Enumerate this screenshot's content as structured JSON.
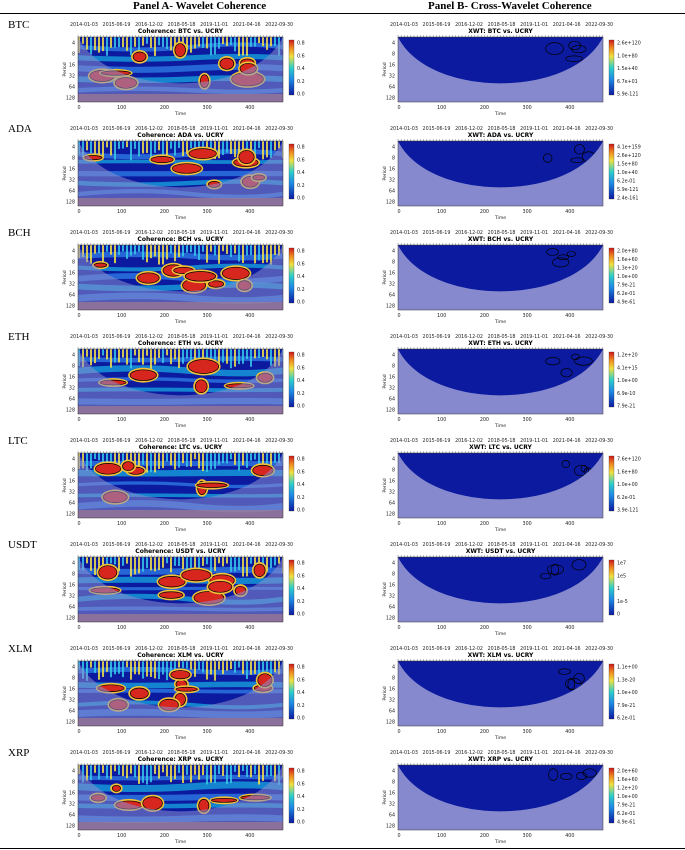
{
  "header": {
    "panel_a": "Panel A- Wavelet Coherence",
    "panel_b": "Panel B- Cross-Wavelet Coherence"
  },
  "common": {
    "date_ticks": [
      "2014-01-03",
      "2015-06-19",
      "2016-12-02",
      "2018-05-18",
      "2019-11-01",
      "2021-04-16",
      "2022-09-30"
    ],
    "time_ticks": [
      "0",
      "100",
      "200",
      "300",
      "400"
    ],
    "xlabel": "Time",
    "ylabel": "Period",
    "period_ticks": [
      "4",
      "8",
      "16",
      "32",
      "64",
      "128"
    ]
  },
  "colors": {
    "panel_bg": "#0b1a9e",
    "coi": "#8d8fd0",
    "hot": "#d7261e",
    "contour": "#000000"
  },
  "chart_data": [
    {
      "type": "heatmap",
      "panel": "A",
      "crypto": "BTC",
      "title": "Coherence: BTC vs. UCRY",
      "colorbar": [
        "0.8",
        "0.6",
        "0.4",
        "0.2",
        "0.0"
      ]
    },
    {
      "type": "heatmap",
      "panel": "B",
      "crypto": "BTC",
      "title": "XWT: BTC vs. UCRY",
      "colorbar": [
        "2.6e+120",
        "1.0e+80",
        "1.5e+40",
        "6.7e+01",
        "5.9e-121"
      ]
    },
    {
      "type": "heatmap",
      "panel": "A",
      "crypto": "ADA",
      "title": "Coherence: ADA vs. UCRY",
      "colorbar": [
        "0.8",
        "0.6",
        "0.4",
        "0.2",
        "0.0"
      ]
    },
    {
      "type": "heatmap",
      "panel": "B",
      "crypto": "ADA",
      "title": "XWT: ADA vs. UCRY",
      "colorbar": [
        "4.1e+159",
        "2.6e+120",
        "1.5e+80",
        "1.0e+40",
        "6.2e-01",
        "5.9e-121",
        "2.4e-161"
      ]
    },
    {
      "type": "heatmap",
      "panel": "A",
      "crypto": "BCH",
      "title": "Coherence: BCH vs. UCRY",
      "colorbar": [
        "0.8",
        "0.6",
        "0.4",
        "0.2",
        "0.0"
      ]
    },
    {
      "type": "heatmap",
      "panel": "B",
      "crypto": "BCH",
      "title": "XWT: BCH vs. UCRY",
      "colorbar": [
        "2.0e+80",
        "1.6e+60",
        "1.3e+20",
        "1.0e+00",
        "7.9e-21",
        "6.2e-01",
        "4.9e-61"
      ]
    },
    {
      "type": "heatmap",
      "panel": "A",
      "crypto": "ETH",
      "title": "Coherence: ETH vs. UCRY",
      "colorbar": [
        "0.8",
        "0.6",
        "0.4",
        "0.2",
        "0.0"
      ]
    },
    {
      "type": "heatmap",
      "panel": "B",
      "crypto": "ETH",
      "title": "XWT: ETH vs. UCRY",
      "colorbar": [
        "1.2e+20",
        "4.1e+15",
        "1.0e+00",
        "6.9e-10",
        "7.9e-21"
      ]
    },
    {
      "type": "heatmap",
      "panel": "A",
      "crypto": "LTC",
      "title": "Coherence: LTC vs. UCRY",
      "colorbar": [
        "0.8",
        "0.6",
        "0.4",
        "0.2",
        "0.0"
      ]
    },
    {
      "type": "heatmap",
      "panel": "B",
      "crypto": "LTC",
      "title": "XWT: LTC vs. UCRY",
      "colorbar": [
        "7.6e+120",
        "1.6e+80",
        "1.0e+00",
        "6.2e-01",
        "3.9e-121"
      ]
    },
    {
      "type": "heatmap",
      "panel": "A",
      "crypto": "USDT",
      "title": "Coherence: USDT vs. UCRY",
      "colorbar": [
        "0.8",
        "0.6",
        "0.4",
        "0.2",
        "0.0"
      ]
    },
    {
      "type": "heatmap",
      "panel": "B",
      "crypto": "USDT",
      "title": "XWT: USDT vs. UCRY",
      "colorbar": [
        "1e7",
        "1e5",
        "1",
        "1e-5",
        "0"
      ]
    },
    {
      "type": "heatmap",
      "panel": "A",
      "crypto": "XLM",
      "title": "Coherence: XLM vs. UCRY",
      "colorbar": [
        "0.8",
        "0.6",
        "0.4",
        "0.2",
        "0.0"
      ]
    },
    {
      "type": "heatmap",
      "panel": "B",
      "crypto": "XLM",
      "title": "XWT: XLM vs. UCRY",
      "colorbar": [
        "1.1e+00",
        "1.3e-20",
        "1.0e+00",
        "7.9e-21",
        "6.2e-01"
      ]
    },
    {
      "type": "heatmap",
      "panel": "A",
      "crypto": "XRP",
      "title": "Coherence: XRP vs. UCRY",
      "colorbar": [
        "0.8",
        "0.6",
        "0.4",
        "0.2",
        "0.0"
      ]
    },
    {
      "type": "heatmap",
      "panel": "B",
      "crypto": "XRP",
      "title": "XWT: XRP vs. UCRY",
      "colorbar": [
        "2.0e+60",
        "1.6e+60",
        "1.2e+20",
        "1.0e+00",
        "7.9e-21",
        "6.2e-01",
        "4.9e-61"
      ]
    }
  ]
}
